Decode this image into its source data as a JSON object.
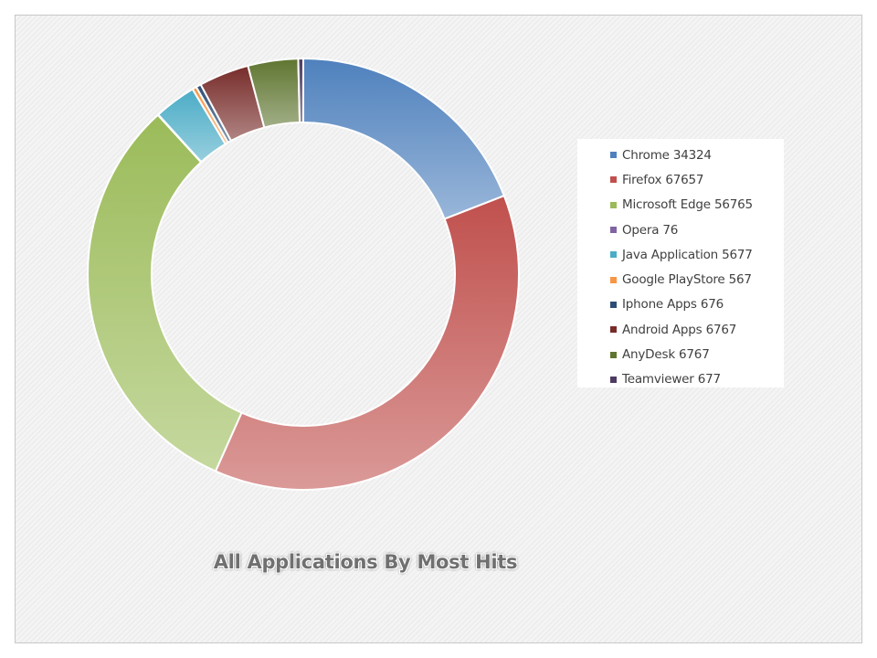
{
  "chart_data": {
    "type": "pie",
    "subtype": "donut",
    "title": "All Applications By Most Hits",
    "legend_position": "right",
    "series": [
      {
        "name": "Chrome",
        "label": "Chrome 34324",
        "value": 34324,
        "color": "#4f81bd"
      },
      {
        "name": "Firefox",
        "label": "Firefox 67657",
        "value": 67657,
        "color": "#c0504d"
      },
      {
        "name": "Microsoft Edge",
        "label": "Microsoft Edge 56765",
        "value": 56765,
        "color": "#9bbb59"
      },
      {
        "name": "Opera",
        "label": "Opera 76",
        "value": 76,
        "color": "#8064a2"
      },
      {
        "name": "Java Application",
        "label": "Java Application 5677",
        "value": 5677,
        "color": "#4bacc6"
      },
      {
        "name": "Google PlayStore",
        "label": "Google PlayStore 567",
        "value": 567,
        "color": "#f79646"
      },
      {
        "name": "Iphone Apps",
        "label": "Iphone Apps 676",
        "value": 676,
        "color": "#2c4d75"
      },
      {
        "name": "Android Apps",
        "label": "Android Apps 6767",
        "value": 6767,
        "color": "#772c2a"
      },
      {
        "name": "AnyDesk",
        "label": "AnyDesk 6767",
        "value": 6767,
        "color": "#5f7530"
      },
      {
        "name": "Teamviewer",
        "label": "Teamviewer 677",
        "value": 677,
        "color": "#4d3b62"
      }
    ]
  }
}
